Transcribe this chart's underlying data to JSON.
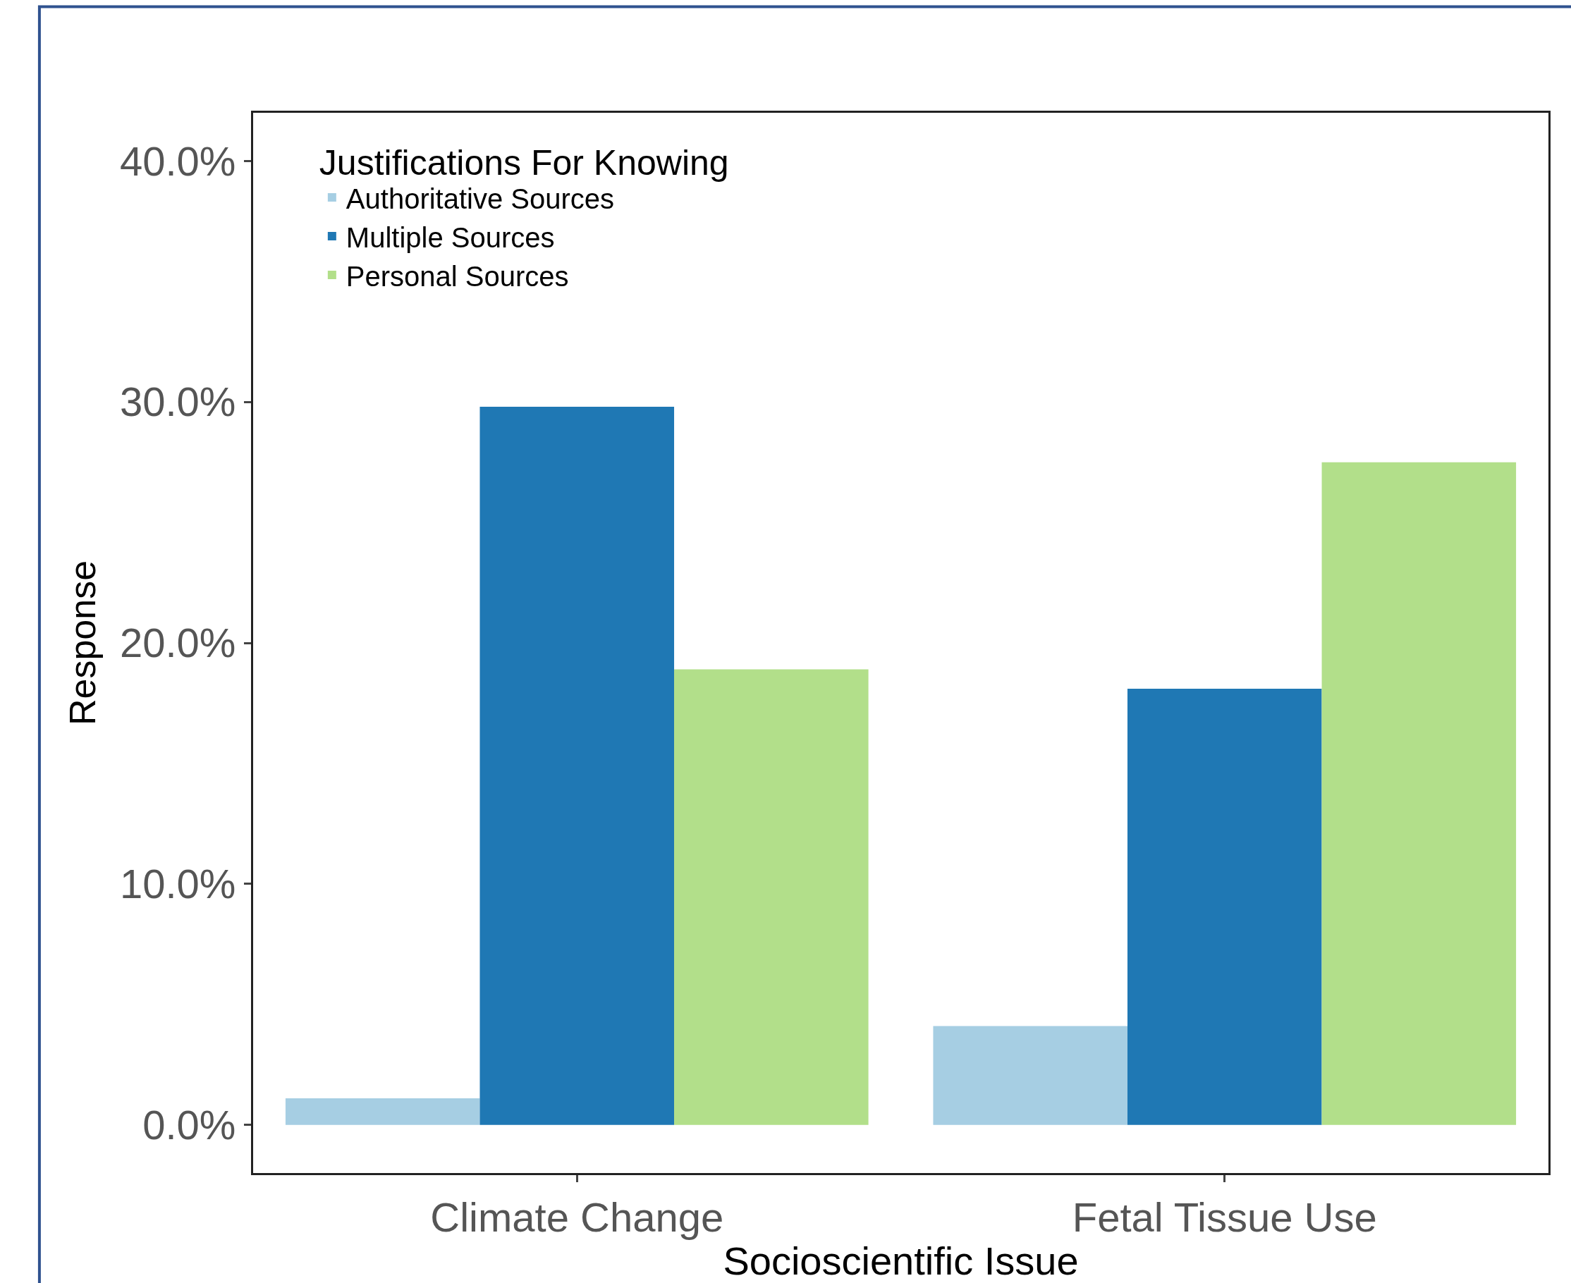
{
  "chart_data": {
    "type": "bar",
    "xlabel": "Socioscientific Issue",
    "ylabel": "Response",
    "legend_title": "Justifications For Knowing",
    "categories": [
      "Climate Change",
      "Fetal Tissue Use"
    ],
    "series": [
      {
        "name": "Authoritative Sources",
        "color": "#a6cee3",
        "values": [
          1.1,
          4.1
        ]
      },
      {
        "name": "Multiple Sources",
        "color": "#1f78b4",
        "values": [
          29.8,
          18.1
        ]
      },
      {
        "name": "Personal Sources",
        "color": "#b2df8a",
        "values": [
          18.9,
          27.5
        ]
      }
    ],
    "ylim": [
      -2,
      42
    ],
    "yticks": [
      {
        "value": 0,
        "label": "0.0%"
      },
      {
        "value": 10,
        "label": "10.0%"
      },
      {
        "value": 20,
        "label": "20.0%"
      },
      {
        "value": 30,
        "label": "30.0%"
      },
      {
        "value": 40,
        "label": "40.0%"
      }
    ],
    "legend": "top left"
  }
}
